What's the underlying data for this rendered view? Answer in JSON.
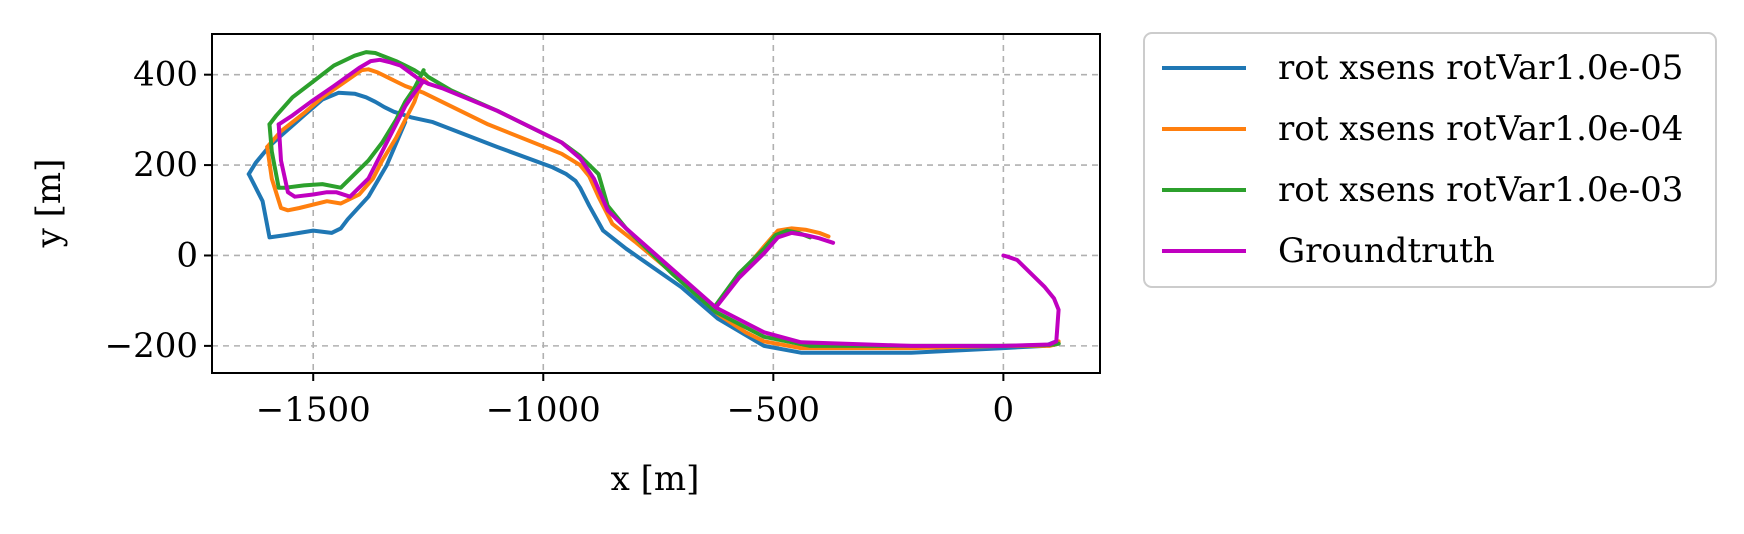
{
  "chart_data": {
    "type": "line",
    "xlabel": "x [m]",
    "ylabel": "y [m]",
    "xlim": [
      -1720,
      210
    ],
    "ylim": [
      -260,
      490
    ],
    "xticks": [
      -1500,
      -1000,
      -500,
      0
    ],
    "yticks": [
      400,
      200,
      0,
      -200
    ],
    "grid": true,
    "legend_position": "outside-right-top",
    "series": [
      {
        "name": "rot xsens rotVar1.0e-05",
        "color": "#1f77b4",
        "x": [
          -1640,
          -1625,
          -1595,
          -1570,
          -1520,
          -1480,
          -1445,
          -1410,
          -1385,
          -1365,
          -1345,
          -1325,
          -1300,
          -1285,
          -1240,
          -1100,
          -980,
          -950,
          -930,
          -920,
          -900,
          -870,
          -820,
          -700,
          -620,
          -520,
          -440,
          -200,
          0,
          90,
          115,
          120,
          110,
          90,
          50,
          0
        ],
        "y": [
          180,
          205,
          242,
          265,
          310,
          345,
          360,
          358,
          350,
          340,
          328,
          318,
          310,
          305,
          295,
          240,
          195,
          180,
          165,
          150,
          110,
          55,
          15,
          -70,
          -140,
          -200,
          -215,
          -215,
          -205,
          -200,
          -190,
          -195,
          -198,
          -198,
          -200,
          -200
        ]
      },
      {
        "name": "rot xsens rotVar1.0e-05",
        "color": "#1f77b4",
        "x": [
          -1640,
          -1610,
          -1595,
          -1560,
          -1500,
          -1460,
          -1440,
          -1425,
          -1380,
          -1340,
          -1300
        ],
        "y": [
          180,
          120,
          40,
          45,
          55,
          50,
          60,
          80,
          130,
          200,
          295
        ]
      },
      {
        "name": "rot xsens rotVar1.0e-04",
        "color": "#ff7f0e",
        "x": [
          -1600,
          -1570,
          -1520,
          -1480,
          -1430,
          -1395,
          -1380,
          -1360,
          -1340,
          -1320,
          -1300,
          -1260,
          -1120,
          -960,
          -920,
          -900,
          -880,
          -850,
          -800,
          -700,
          -620,
          -560,
          -520,
          -440,
          -200,
          0,
          100,
          120,
          120
        ],
        "y": [
          240,
          275,
          315,
          350,
          385,
          410,
          412,
          405,
          395,
          385,
          375,
          360,
          290,
          225,
          200,
          175,
          130,
          70,
          30,
          -55,
          -130,
          -170,
          -190,
          -205,
          -205,
          -200,
          -200,
          -195,
          -190
        ]
      },
      {
        "name": "rot xsens rotVar1.0e-04",
        "color": "#ff7f0e",
        "x": [
          -1600,
          -1590,
          -1570,
          -1555,
          -1530,
          -1470,
          -1440,
          -1400,
          -1370,
          -1350,
          -1320,
          -1300,
          -1280,
          -1270,
          -1260,
          -1250
        ],
        "y": [
          240,
          170,
          105,
          100,
          105,
          120,
          115,
          135,
          170,
          210,
          260,
          300,
          340,
          370,
          390,
          380
        ]
      },
      {
        "name": "rot xsens rotVar1.0e-04",
        "color": "#ff7f0e",
        "x": [
          -625,
          -570,
          -520,
          -490,
          -460,
          -430,
          -400,
          -380
        ],
        "y": [
          -110,
          -40,
          20,
          55,
          60,
          57,
          50,
          42
        ]
      },
      {
        "name": "rot xsens rotVar1.0e-03",
        "color": "#2ca02c",
        "x": [
          -1595,
          -1580,
          -1545,
          -1500,
          -1455,
          -1410,
          -1385,
          -1365,
          -1345,
          -1320,
          -1300,
          -1280,
          -1265,
          -1260,
          -1250,
          -1200,
          -1100,
          -960,
          -920,
          -880,
          -860,
          -820,
          -720,
          -625,
          -520,
          -420,
          -200,
          0,
          100,
          120
        ],
        "y": [
          290,
          310,
          350,
          385,
          420,
          442,
          450,
          448,
          440,
          430,
          420,
          410,
          400,
          405,
          395,
          365,
          320,
          250,
          220,
          180,
          110,
          60,
          -40,
          -125,
          -180,
          -200,
          -200,
          -200,
          -198,
          -195
        ]
      },
      {
        "name": "rot xsens rotVar1.0e-03",
        "color": "#2ca02c",
        "x": [
          -1595,
          -1590,
          -1575,
          -1560,
          -1520,
          -1480,
          -1440,
          -1380,
          -1350,
          -1320,
          -1300,
          -1280,
          -1265,
          -1260
        ],
        "y": [
          290,
          230,
          150,
          150,
          155,
          158,
          150,
          210,
          250,
          300,
          340,
          370,
          400,
          410
        ]
      },
      {
        "name": "rot xsens rotVar1.0e-03",
        "color": "#2ca02c",
        "x": [
          -625,
          -575,
          -520,
          -495,
          -470,
          -445,
          -420
        ],
        "y": [
          -110,
          -40,
          15,
          45,
          55,
          50,
          40
        ]
      },
      {
        "name": "Groundtruth",
        "color": "#c000c0",
        "x": [
          -1575,
          -1545,
          -1505,
          -1455,
          -1400,
          -1375,
          -1355,
          -1335,
          -1310,
          -1290,
          -1270,
          -1250,
          -1220,
          -1100,
          -960,
          -920,
          -890,
          -860,
          -820,
          -720,
          -625,
          -520,
          -440,
          -200,
          0,
          100,
          115,
          120,
          110,
          90,
          60,
          30,
          10,
          0
        ],
        "y": [
          290,
          310,
          340,
          375,
          415,
          430,
          433,
          428,
          420,
          405,
          390,
          380,
          370,
          320,
          250,
          215,
          170,
          100,
          60,
          -30,
          -115,
          -170,
          -192,
          -200,
          -200,
          -197,
          -190,
          -120,
          -95,
          -70,
          -40,
          -10,
          -3,
          0
        ]
      },
      {
        "name": "Groundtruth",
        "color": "#c000c0",
        "x": [
          -1575,
          -1570,
          -1555,
          -1540,
          -1500,
          -1470,
          -1450,
          -1420,
          -1380,
          -1330,
          -1300,
          -1280,
          -1265,
          -1260
        ],
        "y": [
          290,
          210,
          140,
          130,
          135,
          140,
          140,
          130,
          170,
          270,
          330,
          360,
          380,
          385
        ]
      },
      {
        "name": "Groundtruth",
        "color": "#c000c0",
        "x": [
          -625,
          -575,
          -520,
          -490,
          -460,
          -430,
          -400,
          -370
        ],
        "y": [
          -115,
          -50,
          5,
          40,
          50,
          45,
          38,
          28
        ]
      }
    ],
    "legend": [
      {
        "label": "rot xsens rotVar1.0e-05",
        "color": "#1f77b4"
      },
      {
        "label": "rot xsens rotVar1.0e-04",
        "color": "#ff7f0e"
      },
      {
        "label": "rot xsens rotVar1.0e-03",
        "color": "#2ca02c"
      },
      {
        "label": "Groundtruth",
        "color": "#c000c0"
      }
    ]
  }
}
